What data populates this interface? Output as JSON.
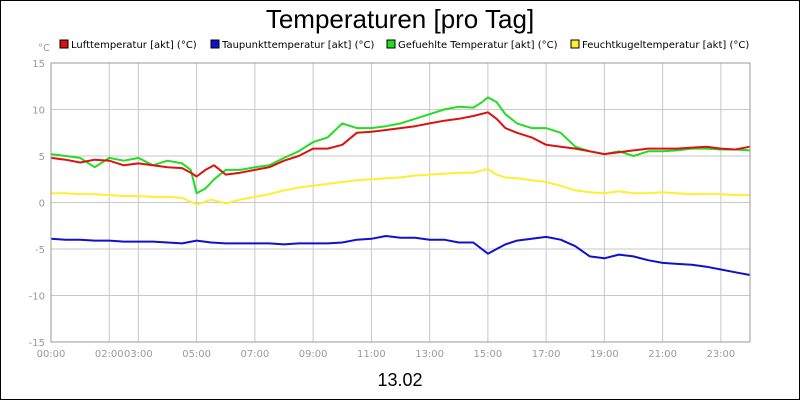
{
  "chart_data": {
    "type": "line",
    "title": "Temperaturen [pro Tag]",
    "ylabel": "°C",
    "xlabel": "13.02",
    "ylim": [
      -15,
      15
    ],
    "yticks": [
      -15,
      -10,
      -5,
      0,
      5,
      10,
      15
    ],
    "xlim": [
      0,
      24
    ],
    "xticks": [
      {
        "value": 0,
        "label": "00:00"
      },
      {
        "value": 2,
        "label": "02:00"
      },
      {
        "value": 3,
        "label": "03:00"
      },
      {
        "value": 5,
        "label": "05:00"
      },
      {
        "value": 7,
        "label": "07:00"
      },
      {
        "value": 9,
        "label": "09:00"
      },
      {
        "value": 11,
        "label": "11:00"
      },
      {
        "value": 13,
        "label": "13:00"
      },
      {
        "value": 15,
        "label": "15:00"
      },
      {
        "value": 17,
        "label": "17:00"
      },
      {
        "value": 19,
        "label": "19:00"
      },
      {
        "value": 21,
        "label": "21:00"
      },
      {
        "value": 23,
        "label": "23:00"
      }
    ],
    "grid": true,
    "series": [
      {
        "name": "Lufttemperatur [akt] (°C)",
        "color": "#dd1111",
        "x": [
          0,
          0.5,
          1,
          1.5,
          2,
          2.5,
          3,
          3.5,
          4,
          4.5,
          4.8,
          5,
          5.3,
          5.6,
          6,
          6.5,
          7,
          7.5,
          8,
          8.5,
          9,
          9.5,
          10,
          10.5,
          11,
          11.5,
          12,
          12.5,
          13,
          13.5,
          14,
          14.5,
          15,
          15.3,
          15.6,
          16,
          16.5,
          17,
          17.5,
          18,
          18.5,
          19,
          19.5,
          20,
          20.5,
          21,
          21.5,
          22,
          22.5,
          23,
          23.5,
          24
        ],
        "y": [
          4.8,
          4.6,
          4.3,
          4.6,
          4.5,
          4.0,
          4.2,
          4.0,
          3.8,
          3.7,
          3.2,
          2.8,
          3.5,
          4.0,
          3.0,
          3.2,
          3.5,
          3.8,
          4.5,
          5.0,
          5.8,
          5.8,
          6.2,
          7.5,
          7.6,
          7.8,
          8.0,
          8.2,
          8.5,
          8.8,
          9.0,
          9.3,
          9.7,
          9.0,
          8.0,
          7.5,
          7.0,
          6.2,
          6.0,
          5.8,
          5.5,
          5.2,
          5.4,
          5.6,
          5.8,
          5.8,
          5.8,
          5.9,
          6.0,
          5.8,
          5.7,
          6.0
        ]
      },
      {
        "name": "Taupunkttemperatur [akt] (°C)",
        "color": "#1111cc",
        "x": [
          0,
          0.5,
          1,
          1.5,
          2,
          2.5,
          3,
          3.5,
          4,
          4.5,
          5,
          5.5,
          6,
          6.5,
          7,
          7.5,
          8,
          8.5,
          9,
          9.5,
          10,
          10.5,
          11,
          11.5,
          12,
          12.5,
          13,
          13.5,
          14,
          14.5,
          15,
          15.3,
          15.6,
          16,
          16.5,
          17,
          17.5,
          18,
          18.5,
          19,
          19.5,
          20,
          20.5,
          21,
          21.5,
          22,
          22.5,
          23,
          23.5,
          24
        ],
        "y": [
          -3.9,
          -4.0,
          -4.0,
          -4.1,
          -4.1,
          -4.2,
          -4.2,
          -4.2,
          -4.3,
          -4.4,
          -4.1,
          -4.3,
          -4.4,
          -4.4,
          -4.4,
          -4.4,
          -4.5,
          -4.4,
          -4.4,
          -4.4,
          -4.3,
          -4.0,
          -3.9,
          -3.6,
          -3.8,
          -3.8,
          -4.0,
          -4.0,
          -4.3,
          -4.3,
          -5.5,
          -5.0,
          -4.5,
          -4.1,
          -3.9,
          -3.7,
          -4.0,
          -4.7,
          -5.8,
          -6.0,
          -5.6,
          -5.8,
          -6.2,
          -6.5,
          -6.6,
          -6.7,
          -6.9,
          -7.2,
          -7.5,
          -7.8
        ]
      },
      {
        "name": "Gefuehlte Temperatur [akt] (°C)",
        "color": "#22dd22",
        "x": [
          0,
          0.5,
          1,
          1.5,
          2,
          2.5,
          3,
          3.5,
          4,
          4.5,
          4.8,
          5,
          5.3,
          5.6,
          6,
          6.5,
          7,
          7.5,
          8,
          8.5,
          9,
          9.5,
          10,
          10.5,
          11,
          11.5,
          12,
          12.5,
          13,
          13.5,
          14,
          14.5,
          14.8,
          15,
          15.3,
          15.6,
          16,
          16.5,
          17,
          17.5,
          18,
          18.5,
          19,
          19.5,
          20,
          20.5,
          21,
          21.5,
          22,
          22.5,
          23,
          23.5,
          24
        ],
        "y": [
          5.2,
          5.0,
          4.8,
          3.8,
          4.8,
          4.5,
          4.8,
          4.0,
          4.5,
          4.2,
          3.5,
          1.0,
          1.5,
          2.5,
          3.5,
          3.5,
          3.8,
          4.0,
          4.8,
          5.5,
          6.5,
          7.0,
          8.5,
          8.0,
          8.0,
          8.2,
          8.5,
          9.0,
          9.5,
          10.0,
          10.3,
          10.2,
          10.8,
          11.3,
          10.8,
          9.5,
          8.5,
          8.0,
          8.0,
          7.5,
          6.0,
          5.5,
          5.2,
          5.5,
          5.0,
          5.5,
          5.5,
          5.6,
          5.8,
          5.8,
          5.7,
          5.7,
          5.6
        ]
      },
      {
        "name": "Feuchtkugeltemperatur [akt] (°C)",
        "color": "#ffee33",
        "x": [
          0,
          0.5,
          1,
          1.5,
          2,
          2.5,
          3,
          3.5,
          4,
          4.5,
          5,
          5.5,
          6,
          6.5,
          7,
          7.5,
          8,
          8.5,
          9,
          9.5,
          10,
          10.5,
          11,
          11.5,
          12,
          12.5,
          13,
          13.5,
          14,
          14.5,
          15,
          15.3,
          15.6,
          16,
          16.5,
          17,
          17.5,
          18,
          18.5,
          19,
          19.5,
          20,
          20.5,
          21,
          21.5,
          22,
          22.5,
          23,
          23.5,
          24
        ],
        "y": [
          1.0,
          1.0,
          0.9,
          0.9,
          0.8,
          0.7,
          0.7,
          0.6,
          0.6,
          0.5,
          -0.2,
          0.3,
          -0.1,
          0.3,
          0.6,
          0.9,
          1.3,
          1.6,
          1.8,
          2.0,
          2.2,
          2.4,
          2.5,
          2.6,
          2.7,
          2.9,
          3.0,
          3.1,
          3.2,
          3.2,
          3.6,
          3.0,
          2.7,
          2.6,
          2.4,
          2.2,
          1.8,
          1.3,
          1.1,
          1.0,
          1.2,
          1.0,
          1.0,
          1.1,
          1.0,
          0.9,
          0.9,
          0.9,
          0.8,
          0.8
        ]
      }
    ]
  }
}
